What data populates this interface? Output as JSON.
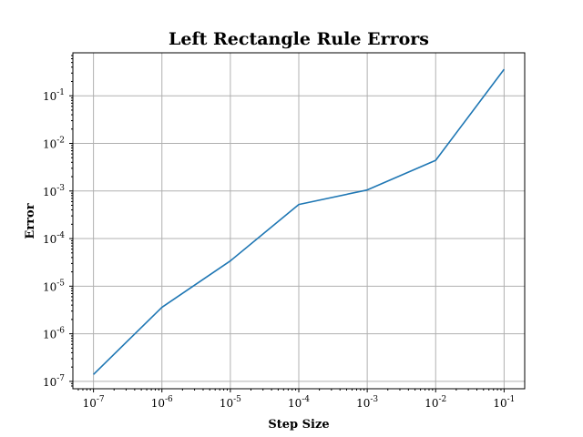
{
  "chart_data": {
    "type": "line",
    "title": "Left Rectangle Rule Errors",
    "xlabel": "Step Size",
    "ylabel": "Error",
    "xscale": "log",
    "yscale": "log",
    "xlim": [
      5e-08,
      0.2
    ],
    "ylim": [
      7e-08,
      0.8
    ],
    "grid": true,
    "x_ticks": [
      {
        "value": 1e-07,
        "base": "10",
        "exp": "-7"
      },
      {
        "value": 1e-06,
        "base": "10",
        "exp": "-6"
      },
      {
        "value": 1e-05,
        "base": "10",
        "exp": "-5"
      },
      {
        "value": 0.0001,
        "base": "10",
        "exp": "-4"
      },
      {
        "value": 0.001,
        "base": "10",
        "exp": "-3"
      },
      {
        "value": 0.01,
        "base": "10",
        "exp": "-2"
      },
      {
        "value": 0.1,
        "base": "10",
        "exp": "-1"
      }
    ],
    "y_ticks": [
      {
        "value": 1e-07,
        "base": "10",
        "exp": "-7"
      },
      {
        "value": 1e-06,
        "base": "10",
        "exp": "-6"
      },
      {
        "value": 1e-05,
        "base": "10",
        "exp": "-5"
      },
      {
        "value": 0.0001,
        "base": "10",
        "exp": "-4"
      },
      {
        "value": 0.001,
        "base": "10",
        "exp": "-3"
      },
      {
        "value": 0.01,
        "base": "10",
        "exp": "-2"
      },
      {
        "value": 0.1,
        "base": "10",
        "exp": "-1"
      }
    ],
    "series": [
      {
        "color": "#1f77b4",
        "x": [
          1e-07,
          1e-06,
          1e-05,
          0.0001,
          0.001,
          0.01,
          0.1
        ],
        "y": [
          1.4e-07,
          3.6e-06,
          3.4e-05,
          0.00052,
          0.00105,
          0.0044,
          0.36
        ]
      }
    ]
  }
}
